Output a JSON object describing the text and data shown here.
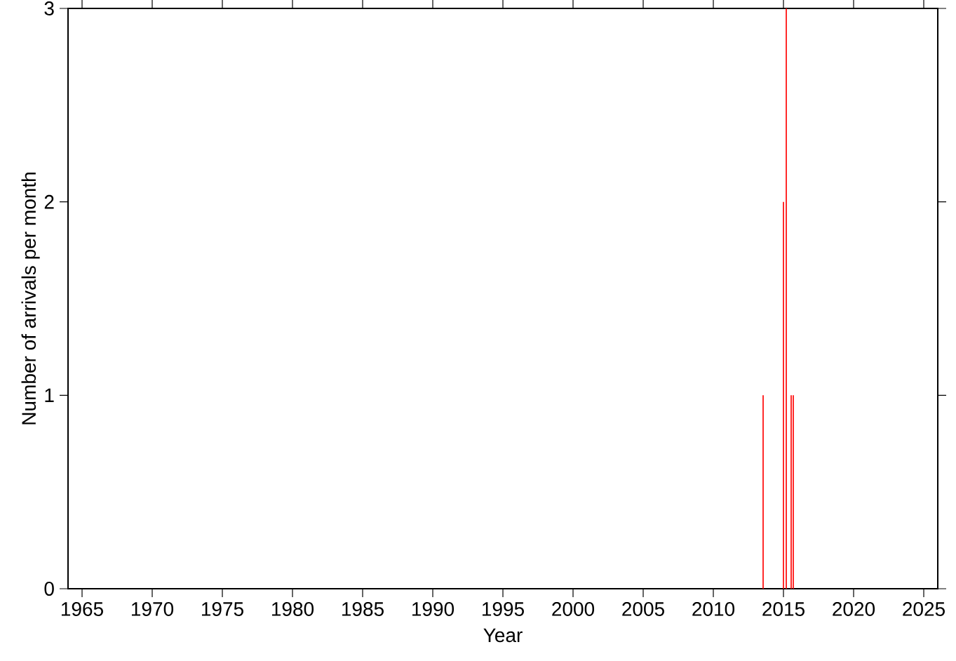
{
  "chart_data": {
    "type": "bar",
    "xlabel": "Year",
    "ylabel": "Number of arrivals per month",
    "x": [
      2013.55,
      2015.0,
      2015.2,
      2015.55,
      2015.7
    ],
    "values": [
      1,
      2,
      3,
      1,
      1
    ],
    "color": "#ff0000",
    "xlim": [
      1964,
      2026
    ],
    "xticks": [
      1965,
      1970,
      1975,
      1980,
      1985,
      1990,
      1995,
      2000,
      2005,
      2010,
      2015,
      2020,
      2025
    ],
    "ylim": [
      0,
      3
    ],
    "yticks": [
      0,
      1,
      2,
      3
    ]
  }
}
